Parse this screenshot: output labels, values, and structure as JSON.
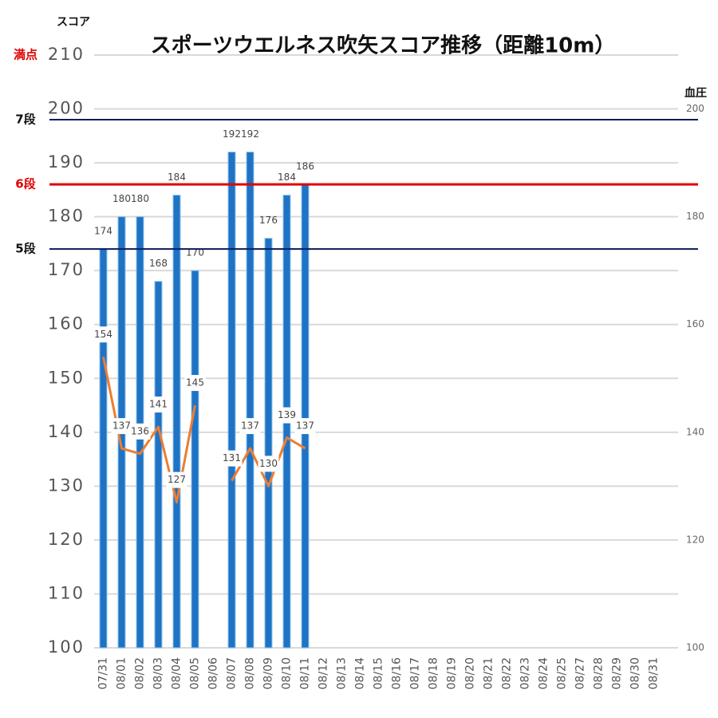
{
  "chart_data": {
    "type": "bar_line",
    "title": "スポーツウエルネス吹矢スコア推移（距離10m）",
    "y_label": "スコア",
    "y2_label": "血圧",
    "categories": [
      "07/31",
      "08/01",
      "08/02",
      "08/03",
      "08/04",
      "08/05",
      "08/06",
      "08/07",
      "08/08",
      "08/09",
      "08/10",
      "08/11",
      "08/12",
      "08/13",
      "08/14",
      "08/15",
      "08/16",
      "08/17",
      "08/18",
      "08/19",
      "08/20",
      "08/21",
      "08/22",
      "08/23",
      "08/24",
      "08/25",
      "08/27",
      "08/28",
      "08/29",
      "08/30",
      "08/31"
    ],
    "series": [
      {
        "type": "bar",
        "color": "#1f73c4",
        "values": [
          174,
          180,
          180,
          168,
          184,
          170,
          null,
          192,
          192,
          176,
          184,
          186,
          null,
          null,
          null,
          null,
          null,
          null,
          null,
          null,
          null,
          null,
          null,
          null,
          null,
          null,
          null,
          null,
          null,
          null,
          null
        ]
      },
      {
        "type": "line",
        "axis": "y2",
        "color": "#ed7d31",
        "values": [
          154,
          137,
          136,
          141,
          127,
          145,
          null,
          131,
          137,
          130,
          139,
          137,
          null,
          null,
          null,
          null,
          null,
          null,
          null,
          null,
          null,
          null,
          null,
          null,
          null,
          null,
          null,
          null,
          null,
          null,
          null
        ]
      }
    ],
    "ylim": [
      100,
      210
    ],
    "yticks": [
      100,
      110,
      120,
      130,
      140,
      150,
      160,
      170,
      180,
      190,
      200,
      210
    ],
    "y2lim": [
      100,
      210
    ],
    "y2ticks": [
      100,
      120,
      140,
      160,
      180,
      200
    ],
    "grid": true,
    "reference_lines": [
      {
        "label": "満点",
        "value": 210,
        "color": "#e00000",
        "line": false
      },
      {
        "label": "7段",
        "value": 198,
        "color": "#0a1a5c",
        "line": true
      },
      {
        "label": "6段",
        "value": 186,
        "color": "#e00000",
        "line": true
      },
      {
        "label": "5段",
        "value": 174,
        "color": "#0a1a5c",
        "line": true
      }
    ]
  }
}
